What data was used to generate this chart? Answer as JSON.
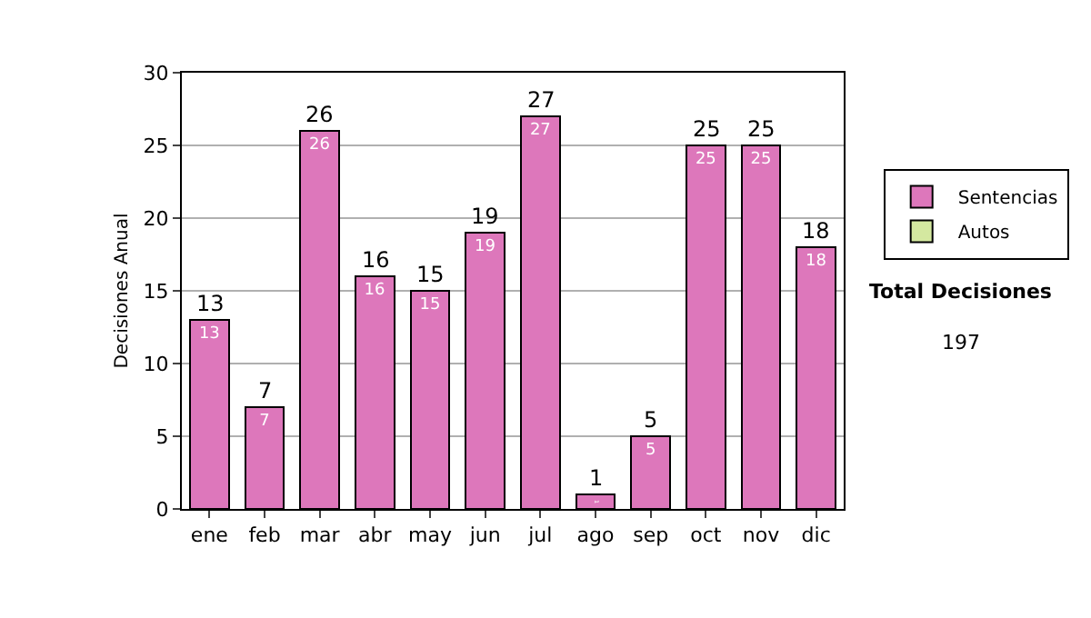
{
  "chart_data": {
    "type": "bar",
    "ylabel": "Decisiones Anual",
    "categories": [
      "ene",
      "feb",
      "mar",
      "abr",
      "may",
      "jun",
      "jul",
      "ago",
      "sep",
      "oct",
      "nov",
      "dic"
    ],
    "series": [
      {
        "name": "Sentencias",
        "color": "#dd77bb",
        "values": [
          13,
          7,
          26,
          16,
          15,
          19,
          27,
          1,
          5,
          25,
          25,
          18
        ]
      },
      {
        "name": "Autos",
        "color": "#d4e8a0",
        "values": [
          null,
          null,
          null,
          null,
          null,
          null,
          null,
          null,
          null,
          null,
          null,
          null
        ]
      }
    ],
    "stacked": true,
    "totals": [
      "13",
      "7",
      "26",
      "16",
      "15",
      "19",
      "27",
      "1",
      "5",
      "25",
      "25",
      "18"
    ],
    "data_labels": true,
    "ylim": [
      0,
      30
    ],
    "yticks": [
      0,
      5,
      10,
      15,
      20,
      25,
      30
    ],
    "grid": "y",
    "legend": "right",
    "annotations": [
      "Total Decisiones",
      "197"
    ]
  }
}
